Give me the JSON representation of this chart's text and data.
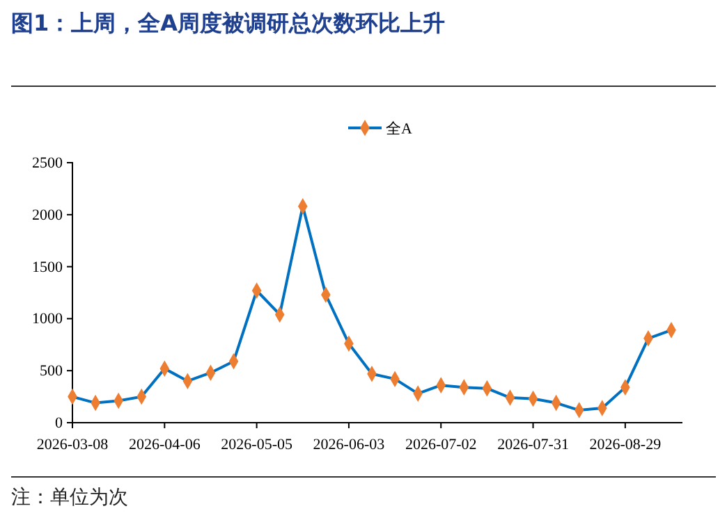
{
  "chart_data": {
    "type": "line",
    "title": "图1：上周，全A周度被调研总次数环比上升",
    "annotations": [
      "注：单位为次"
    ],
    "categories": [
      "2026-03-08",
      null,
      null,
      null,
      "2026-04-06",
      null,
      null,
      null,
      "2026-05-05",
      null,
      null,
      null,
      "2026-06-03",
      null,
      null,
      null,
      "2026-07-02",
      null,
      null,
      null,
      "2026-07-31",
      null,
      null,
      null,
      "2026-08-29",
      null,
      null
    ],
    "series": [
      {
        "name": "全A",
        "color": "#0070c0",
        "values": [
          250,
          190,
          210,
          250,
          520,
          400,
          480,
          590,
          1270,
          1040,
          2080,
          1230,
          760,
          470,
          420,
          280,
          360,
          340,
          330,
          240,
          230,
          190,
          120,
          140,
          340,
          810,
          890
        ]
      }
    ],
    "marker": "diamond",
    "ylim": [
      0,
      2500
    ],
    "yticks": [
      0,
      500,
      1000,
      1500,
      2000,
      2500
    ],
    "legend": "top",
    "grid": false
  }
}
